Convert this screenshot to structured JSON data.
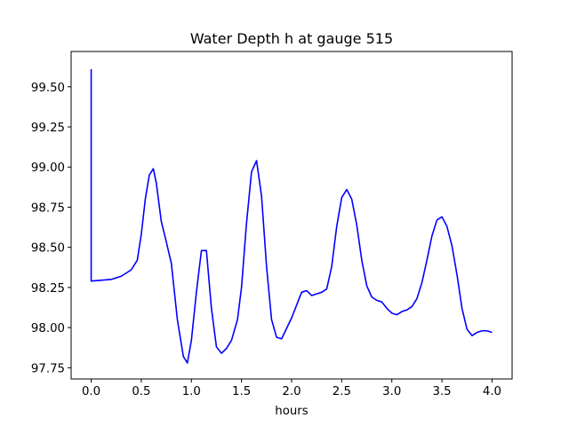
{
  "chart_data": {
    "type": "line",
    "title": "Water Depth h at gauge 515",
    "xlabel": "hours",
    "ylabel": "",
    "xlim": [
      -0.2,
      4.2
    ],
    "ylim": [
      97.68,
      99.72
    ],
    "xticks": [
      0.0,
      0.5,
      1.0,
      1.5,
      2.0,
      2.5,
      3.0,
      3.5,
      4.0
    ],
    "xtick_labels": [
      "0.0",
      "0.5",
      "1.0",
      "1.5",
      "2.0",
      "2.5",
      "3.0",
      "3.5",
      "4.0"
    ],
    "yticks": [
      97.75,
      98.0,
      98.25,
      98.5,
      98.75,
      99.0,
      99.25,
      99.5
    ],
    "ytick_labels": [
      "97.75",
      "98.00",
      "98.25",
      "98.50",
      "98.75",
      "99.00",
      "99.25",
      "99.50"
    ],
    "grid": false,
    "series": [
      {
        "color": "#0000ff",
        "x": [
          0.0,
          0.0,
          0.0,
          0.2,
          0.3,
          0.4,
          0.46,
          0.5,
          0.54,
          0.58,
          0.62,
          0.65,
          0.7,
          0.74,
          0.8,
          0.86,
          0.92,
          0.96,
          1.0,
          1.05,
          1.1,
          1.15,
          1.2,
          1.25,
          1.3,
          1.35,
          1.4,
          1.46,
          1.5,
          1.55,
          1.6,
          1.65,
          1.7,
          1.75,
          1.8,
          1.85,
          1.9,
          2.0,
          2.1,
          2.15,
          2.2,
          2.25,
          2.3,
          2.35,
          2.4,
          2.45,
          2.5,
          2.55,
          2.6,
          2.65,
          2.7,
          2.75,
          2.8,
          2.85,
          2.9,
          2.95,
          3.0,
          3.05,
          3.1,
          3.15,
          3.2,
          3.25,
          3.3,
          3.35,
          3.4,
          3.45,
          3.5,
          3.55,
          3.6,
          3.65,
          3.7,
          3.75,
          3.8,
          3.85,
          3.9,
          3.95,
          4.0
        ],
        "y": [
          99.61,
          98.29,
          98.29,
          98.3,
          98.32,
          98.36,
          98.42,
          98.58,
          98.8,
          98.95,
          98.99,
          98.9,
          98.66,
          98.56,
          98.4,
          98.05,
          97.82,
          97.78,
          97.92,
          98.22,
          98.48,
          98.48,
          98.12,
          97.88,
          97.84,
          97.87,
          97.92,
          98.05,
          98.25,
          98.65,
          98.97,
          99.04,
          98.82,
          98.38,
          98.05,
          97.94,
          97.93,
          98.06,
          98.22,
          98.23,
          98.2,
          98.21,
          98.22,
          98.24,
          98.38,
          98.63,
          98.81,
          98.86,
          98.8,
          98.64,
          98.42,
          98.26,
          98.19,
          98.17,
          98.16,
          98.12,
          98.09,
          98.08,
          98.1,
          98.11,
          98.13,
          98.18,
          98.28,
          98.42,
          98.57,
          98.67,
          98.69,
          98.63,
          98.51,
          98.33,
          98.12,
          97.99,
          97.95,
          97.97,
          97.98,
          97.98,
          97.97
        ]
      }
    ]
  }
}
